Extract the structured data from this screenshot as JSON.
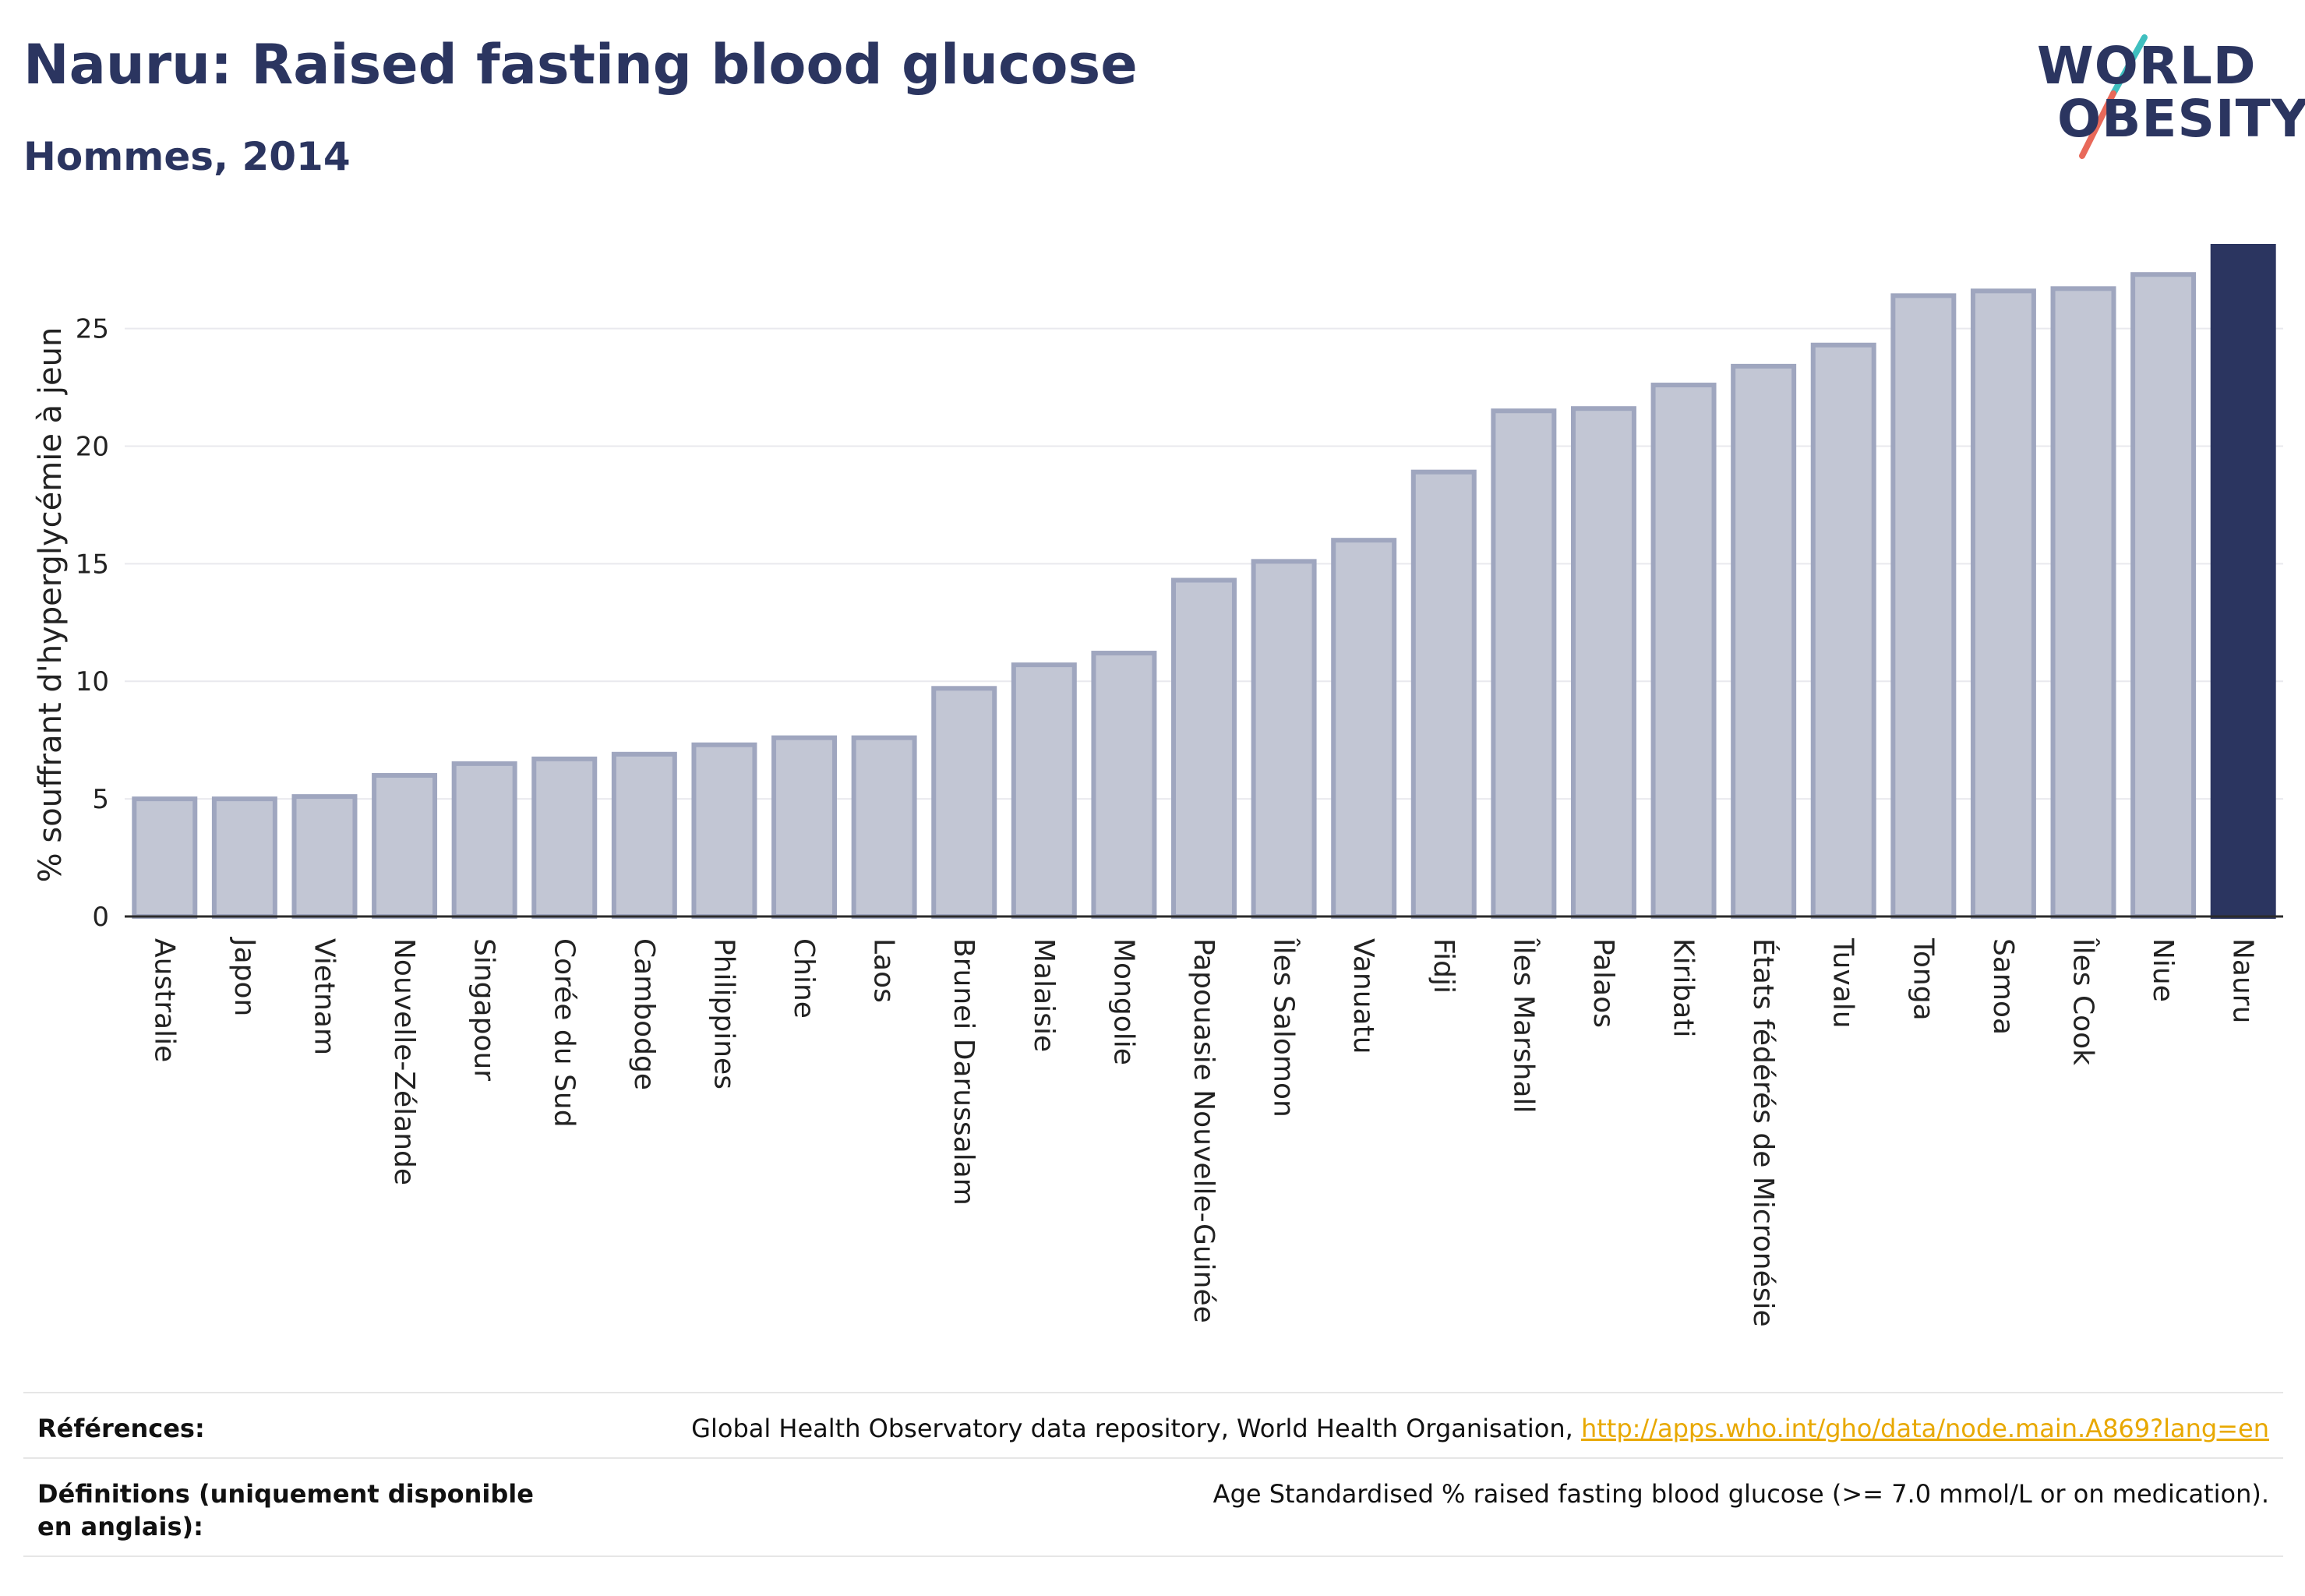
{
  "header": {
    "title": "Nauru: Raised fasting blood glucose",
    "subtitle": "Hommes, 2014"
  },
  "logo": {
    "line1": "WORLD",
    "line2": "OBESITY",
    "accent_colors": [
      "#3fbfbf",
      "#e8695a"
    ]
  },
  "colors": {
    "bar_fill": "#c2c6d4",
    "bar_stroke": "#9fa6bf",
    "highlight": "#2b3560",
    "grid": "#e9e9ee",
    "link": "#e8a800"
  },
  "chart_data": {
    "type": "bar",
    "ylabel": "% souffrant d'hyperglycémie à jeun",
    "ylim": [
      0,
      28.5
    ],
    "yticks": [
      0,
      5,
      10,
      15,
      20,
      25
    ],
    "grid": true,
    "highlight_category": "Nauru",
    "categories": [
      "Australie",
      "Japon",
      "Vietnam",
      "Nouvelle-Zélande",
      "Singapour",
      "Corée du Sud",
      "Cambodge",
      "Philippines",
      "Chine",
      "Laos",
      "Brunei Darussalam",
      "Malaisie",
      "Mongolie",
      "Papouasie Nouvelle-Guinée",
      "Îles Salomon",
      "Vanuatu",
      "Fidji",
      "Îles Marshall",
      "Palaos",
      "Kiribati",
      "États fédérés de Micronésie",
      "Tuvalu",
      "Tonga",
      "Samoa",
      "Îles Cook",
      "Niue",
      "Nauru"
    ],
    "values": [
      5.0,
      5.0,
      5.1,
      6.0,
      6.5,
      6.7,
      6.9,
      7.3,
      7.6,
      7.6,
      9.7,
      10.7,
      11.2,
      14.3,
      15.1,
      16.0,
      18.9,
      21.5,
      21.6,
      22.6,
      23.4,
      24.3,
      26.4,
      26.6,
      26.7,
      27.3,
      28.5
    ]
  },
  "footer": {
    "references_label": "Références:",
    "references_text": "Global Health Observatory data repository, World Health Organisation, ",
    "references_link": "http://apps.who.int/gho/data/node.main.A869?lang=en",
    "definitions_label": "Définitions (uniquement disponible en anglais):",
    "definitions_text": "Age Standardised % raised fasting blood glucose (>= 7.0 mmol/L or on medication)."
  }
}
